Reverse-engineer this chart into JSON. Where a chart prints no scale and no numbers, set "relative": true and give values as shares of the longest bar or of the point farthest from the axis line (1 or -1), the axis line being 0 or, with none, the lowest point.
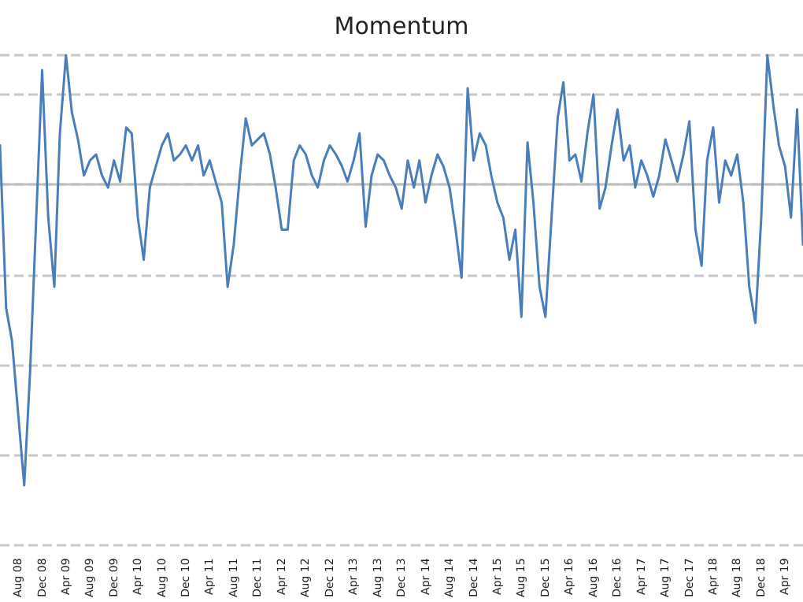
{
  "chart_data": {
    "type": "line",
    "title": "Momentum",
    "relative": true,
    "grid": "y",
    "marker": "none",
    "line_style": "solid",
    "x": [
      "2008-05",
      "2008-06",
      "2008-07",
      "2008-08",
      "2008-09",
      "2008-10",
      "2008-11",
      "2008-12",
      "2009-01",
      "2009-02",
      "2009-03",
      "2009-04",
      "2009-05",
      "2009-06",
      "2009-07",
      "2009-08",
      "2009-09",
      "2009-10",
      "2009-11",
      "2009-12",
      "2010-01",
      "2010-02",
      "2010-03",
      "2010-04",
      "2010-05",
      "2010-06",
      "2010-07",
      "2010-08",
      "2010-09",
      "2010-10",
      "2010-11",
      "2010-12",
      "2011-01",
      "2011-02",
      "2011-03",
      "2011-04",
      "2011-05",
      "2011-06",
      "2011-07",
      "2011-08",
      "2011-09",
      "2011-10",
      "2011-11",
      "2011-12",
      "2012-01",
      "2012-02",
      "2012-03",
      "2012-04",
      "2012-05",
      "2012-06",
      "2012-07",
      "2012-08",
      "2012-09",
      "2012-10",
      "2012-11",
      "2012-12",
      "2013-01",
      "2013-02",
      "2013-03",
      "2013-04",
      "2013-05",
      "2013-06",
      "2013-07",
      "2013-08",
      "2013-09",
      "2013-10",
      "2013-11",
      "2013-12",
      "2014-01",
      "2014-02",
      "2014-03",
      "2014-04",
      "2014-05",
      "2014-06",
      "2014-07",
      "2014-08",
      "2014-09",
      "2014-10",
      "2014-11",
      "2014-12",
      "2015-01",
      "2015-02",
      "2015-03",
      "2015-04",
      "2015-05",
      "2015-06",
      "2015-07",
      "2015-08",
      "2015-09",
      "2015-10",
      "2015-11",
      "2015-12",
      "2016-01",
      "2016-02",
      "2016-03",
      "2016-04",
      "2016-05",
      "2016-06",
      "2016-07",
      "2016-08",
      "2016-09",
      "2016-10",
      "2016-11",
      "2016-12",
      "2017-01",
      "2017-02",
      "2017-03",
      "2017-04",
      "2017-05",
      "2017-06",
      "2017-07",
      "2017-08",
      "2017-09",
      "2017-10",
      "2017-11",
      "2017-12",
      "2018-01",
      "2018-02",
      "2018-03",
      "2018-04",
      "2018-05",
      "2018-06",
      "2018-07",
      "2018-08",
      "2018-09",
      "2018-10",
      "2018-11",
      "2018-12",
      "2019-01",
      "2019-02",
      "2019-03",
      "2019-04",
      "2019-05",
      "2019-06",
      "2019-07"
    ],
    "xlim": [
      "2008-05",
      "2019-07"
    ],
    "xticks": [
      {
        "value": "2008-08",
        "label": "Aug 08"
      },
      {
        "value": "2008-12",
        "label": "Dec 08"
      },
      {
        "value": "2009-04",
        "label": "Apr 09"
      },
      {
        "value": "2009-08",
        "label": "Aug 09"
      },
      {
        "value": "2009-12",
        "label": "Dec 09"
      },
      {
        "value": "2010-04",
        "label": "Apr 10"
      },
      {
        "value": "2010-08",
        "label": "Aug 10"
      },
      {
        "value": "2010-12",
        "label": "Dec 10"
      },
      {
        "value": "2011-04",
        "label": "Apr 11"
      },
      {
        "value": "2011-08",
        "label": "Aug 11"
      },
      {
        "value": "2011-12",
        "label": "Dec 11"
      },
      {
        "value": "2012-04",
        "label": "Apr 12"
      },
      {
        "value": "2012-08",
        "label": "Aug 12"
      },
      {
        "value": "2012-12",
        "label": "Dec 12"
      },
      {
        "value": "2013-04",
        "label": "Apr 13"
      },
      {
        "value": "2013-08",
        "label": "Aug 13"
      },
      {
        "value": "2013-12",
        "label": "Dec 13"
      },
      {
        "value": "2014-04",
        "label": "Apr 14"
      },
      {
        "value": "2014-08",
        "label": "Aug 14"
      },
      {
        "value": "2014-12",
        "label": "Dec 14"
      },
      {
        "value": "2015-04",
        "label": "Apr 15"
      },
      {
        "value": "2015-08",
        "label": "Aug 15"
      },
      {
        "value": "2015-12",
        "label": "Dec 15"
      },
      {
        "value": "2016-04",
        "label": "Apr 16"
      },
      {
        "value": "2016-08",
        "label": "Aug 16"
      },
      {
        "value": "2016-12",
        "label": "Dec 16"
      },
      {
        "value": "2017-04",
        "label": "Apr 17"
      },
      {
        "value": "2017-08",
        "label": "Aug 17"
      },
      {
        "value": "2017-12",
        "label": "Dec 17"
      },
      {
        "value": "2018-04",
        "label": "Apr 18"
      },
      {
        "value": "2018-08",
        "label": "Aug 18"
      },
      {
        "value": "2018-12",
        "label": "Dec 18"
      },
      {
        "value": "2019-04",
        "label": "Apr 19"
      }
    ],
    "series": [
      {
        "color": "#4a7ebb",
        "values": [
          0.13,
          -0.41,
          -0.52,
          -0.76,
          -1,
          -0.62,
          -0.11,
          0.38,
          -0.11,
          -0.34,
          0.17,
          0.43,
          0.24,
          0.15,
          0.03,
          0.08,
          0.1,
          0.03,
          -0.01,
          0.08,
          0.01,
          0.19,
          0.17,
          -0.11,
          -0.25,
          -0.01,
          0.06,
          0.13,
          0.17,
          0.08,
          0.1,
          0.13,
          0.08,
          0.13,
          0.03,
          0.08,
          0.01,
          -0.06,
          -0.34,
          -0.2,
          0.03,
          0.22,
          0.13,
          0.15,
          0.17,
          0.1,
          -0.01,
          -0.15,
          -0.15,
          0.08,
          0.13,
          0.1,
          0.03,
          -0.01,
          0.08,
          0.13,
          0.1,
          0.06,
          0.01,
          0.08,
          0.17,
          -0.14,
          0.03,
          0.1,
          0.08,
          0.03,
          -0.01,
          -0.08,
          0.08,
          -0.01,
          0.08,
          -0.06,
          0.03,
          0.1,
          0.06,
          -0.01,
          -0.15,
          -0.31,
          0.32,
          0.08,
          0.17,
          0.13,
          0.03,
          -0.06,
          -0.11,
          -0.25,
          -0.15,
          -0.44,
          0.14,
          -0.06,
          -0.34,
          -0.44,
          -0.11,
          0.22,
          0.34,
          0.08,
          0.1,
          0.01,
          0.17,
          0.3,
          -0.08,
          -0.01,
          0.13,
          0.25,
          0.08,
          0.13,
          -0.01,
          0.08,
          0.03,
          -0.04,
          0.03,
          0.15,
          0.08,
          0.01,
          0.1,
          0.21,
          -0.15,
          -0.27,
          0.08,
          0.19,
          -0.06,
          0.08,
          0.03,
          0.1,
          -0.06,
          -0.34,
          -0.46,
          -0.11,
          0.43,
          0.26,
          0.13,
          0.06,
          -0.11,
          0.25,
          -0.2
        ]
      }
    ]
  }
}
